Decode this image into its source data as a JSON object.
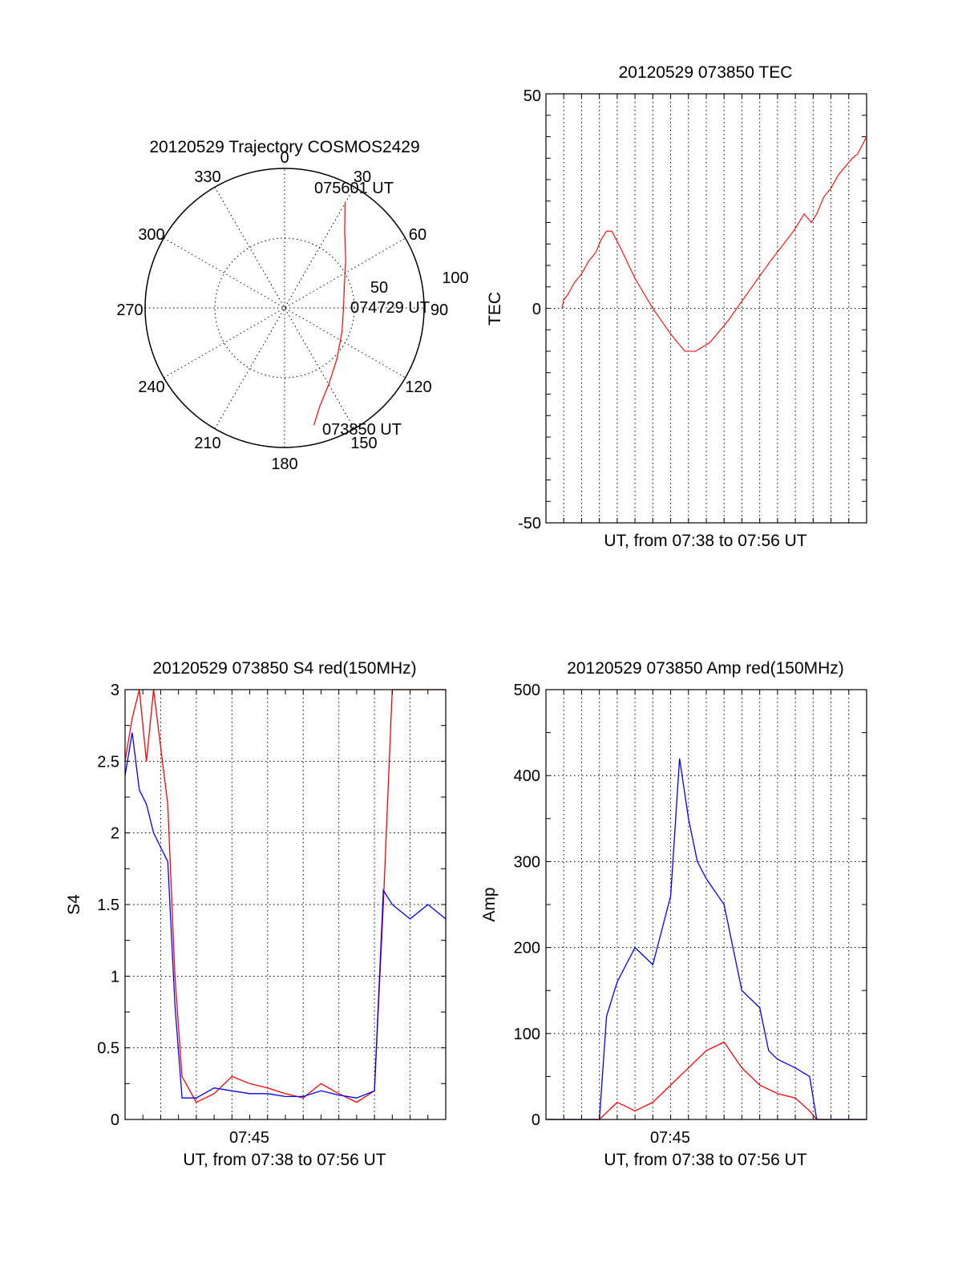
{
  "colors": {
    "red": "#ff0000",
    "blue": "#0000ff",
    "axis": "#000000"
  },
  "chart_data": [
    {
      "id": "polar",
      "type": "polar-trajectory",
      "title": "20120529 Trajectory COSMOS2429",
      "azimuth_labels": [
        "0",
        "30",
        "60",
        "90",
        "120",
        "150",
        "180",
        "210",
        "240",
        "270",
        "300",
        "330"
      ],
      "radial_labels": [
        "50",
        "100"
      ],
      "trajectory": {
        "series_color": "red",
        "points_az_el": [
          [
            166,
            12
          ],
          [
            160,
            23
          ],
          [
            150,
            33
          ],
          [
            134,
            43
          ],
          [
            112,
            50
          ],
          [
            90,
            52
          ],
          [
            70,
            49
          ],
          [
            52,
            40
          ],
          [
            38,
            27
          ],
          [
            30,
            12
          ]
        ]
      },
      "annotations": [
        "075601 UT",
        "074729 UT",
        "073850 UT"
      ]
    },
    {
      "id": "tec",
      "type": "line",
      "title": "20120529 073850 TEC",
      "ylabel": "TEC",
      "xlabel": "UT, from 07:38 to 07:56 UT",
      "ylim": [
        -50,
        50
      ],
      "yticks": [
        "50",
        "0",
        "-50"
      ],
      "x_unit": "minutes after 07:38",
      "xlim": [
        0,
        18
      ],
      "series": [
        {
          "color": "red",
          "x": [
            0.9,
            1.0,
            1.2,
            1.6,
            2.0,
            2.4,
            2.8,
            3.1,
            3.4,
            3.7,
            4.2,
            5.0,
            6.0,
            7.0,
            7.8,
            8.4,
            9.2,
            10.2,
            11.4,
            12.6,
            13.9,
            14.5,
            14.9,
            15.2,
            15.6,
            16.0,
            16.4,
            16.8,
            17.2,
            17.5,
            18.0
          ],
          "y": [
            0,
            2,
            3,
            6,
            8,
            11,
            13,
            16,
            18,
            18,
            14,
            7,
            0,
            -6,
            -10,
            -10,
            -8,
            -3,
            4,
            11,
            18,
            22,
            20,
            22,
            26,
            28,
            31,
            33,
            35,
            36,
            40
          ]
        }
      ]
    },
    {
      "id": "s4",
      "type": "line",
      "title": "20120529 073850 S4 red(150MHz)",
      "ylabel": "S4",
      "xlabel": "UT, from 07:38 to 07:56 UT",
      "ylim": [
        0,
        3
      ],
      "yticks": [
        "0",
        "0.5",
        "1",
        "1.5",
        "2",
        "2.5",
        "3"
      ],
      "xtick_label": "07:45",
      "x_unit": "minutes after 07:38",
      "xlim": [
        0,
        18
      ],
      "series": [
        {
          "color": "red",
          "x": [
            0.0,
            0.4,
            0.8,
            1.2,
            1.6,
            2.0,
            2.4,
            2.8,
            3.2,
            4.0,
            5.0,
            6.0,
            7.0,
            8.0,
            9.0,
            10.0,
            11.0,
            12.0,
            13.0,
            14.0,
            14.5,
            15.0,
            16.0,
            17.0,
            18.0
          ],
          "y": [
            2.5,
            2.8,
            3.0,
            2.5,
            3.0,
            2.6,
            2.2,
            1.0,
            0.3,
            0.12,
            0.18,
            0.3,
            0.25,
            0.22,
            0.18,
            0.15,
            0.25,
            0.18,
            0.12,
            0.2,
            1.5,
            3.0,
            3.0,
            3.0,
            3.0
          ]
        },
        {
          "color": "blue",
          "x": [
            0.0,
            0.4,
            0.8,
            1.2,
            1.6,
            2.0,
            2.4,
            2.8,
            3.2,
            4.0,
            5.0,
            6.0,
            7.0,
            8.0,
            9.0,
            10.0,
            11.0,
            12.0,
            13.0,
            14.0,
            14.5,
            15.0,
            16.0,
            17.0,
            18.0
          ],
          "y": [
            2.4,
            2.7,
            2.3,
            2.2,
            2.0,
            1.9,
            1.8,
            0.8,
            0.15,
            0.15,
            0.22,
            0.2,
            0.18,
            0.18,
            0.16,
            0.16,
            0.2,
            0.17,
            0.15,
            0.2,
            1.6,
            1.5,
            1.4,
            1.5,
            1.4
          ]
        }
      ]
    },
    {
      "id": "amp",
      "type": "line",
      "title": "20120529 073850 Amp red(150MHz)",
      "ylabel": "Amp",
      "xlabel": "UT, from 07:38 to 07:56 UT",
      "ylim": [
        0,
        500
      ],
      "yticks": [
        "0",
        "100",
        "200",
        "300",
        "400",
        "500"
      ],
      "xtick_label": "07:45",
      "x_unit": "minutes after 07:38",
      "xlim": [
        0,
        18
      ],
      "series": [
        {
          "color": "red",
          "x": [
            0,
            3.0,
            3.5,
            4.0,
            5.0,
            6.0,
            7.0,
            8.0,
            9.0,
            10.0,
            11.0,
            12.0,
            13.0,
            14.0,
            14.8,
            15.2,
            18.0
          ],
          "y": [
            0,
            0,
            10,
            20,
            10,
            20,
            40,
            60,
            80,
            90,
            60,
            40,
            30,
            25,
            10,
            0,
            0
          ]
        },
        {
          "color": "blue",
          "x": [
            0,
            3.0,
            3.4,
            4.0,
            5.0,
            6.0,
            7.0,
            7.5,
            8.0,
            8.5,
            9.0,
            10.0,
            11.0,
            12.0,
            12.5,
            13.0,
            14.0,
            14.8,
            15.2,
            18.0
          ],
          "y": [
            0,
            0,
            120,
            160,
            200,
            180,
            260,
            420,
            350,
            300,
            280,
            250,
            150,
            130,
            80,
            70,
            60,
            50,
            0,
            0
          ]
        }
      ]
    }
  ]
}
